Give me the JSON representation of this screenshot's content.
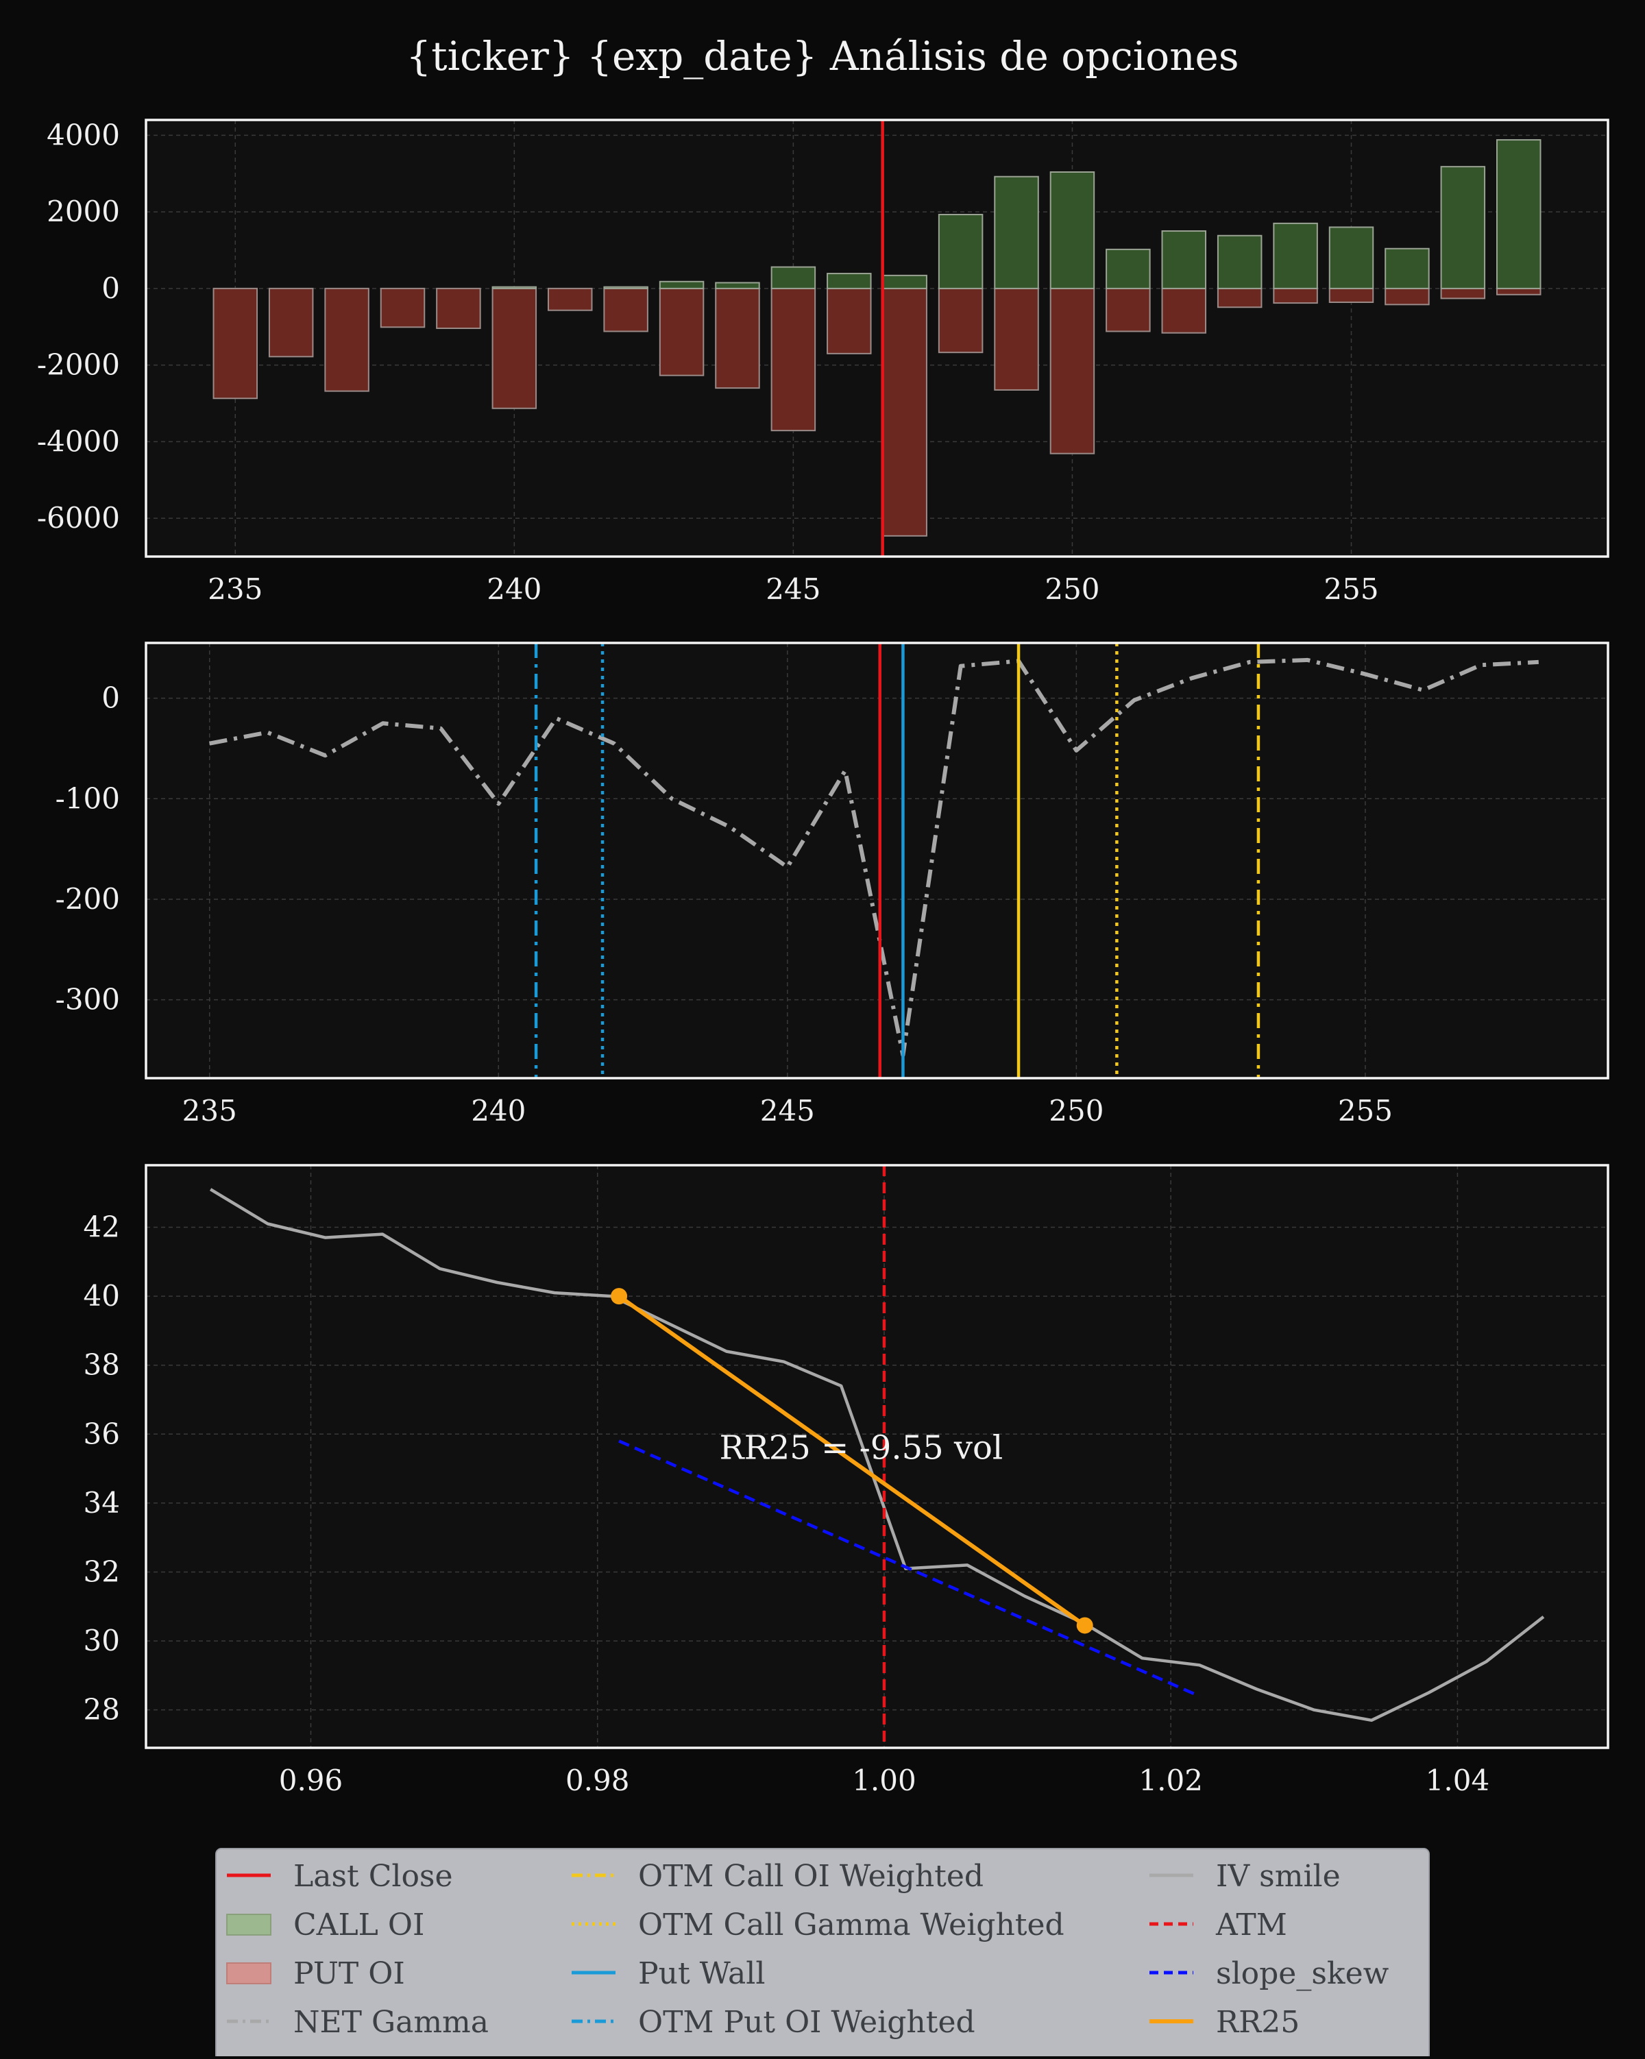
{
  "figure_title": "{ticker} {exp_date} Análisis de opciones",
  "colors": {
    "background": "#0a0a0a",
    "panel": "#101010",
    "call_oi": "#34552a",
    "put_oi": "#6b2820",
    "last_close": "#e8161a",
    "net_gamma": "#a8a8a8",
    "call_levels": "#f2c81d",
    "put_levels": "#1a9bd8",
    "iv_smile": "#a9a9a9",
    "atm": "#e8161a",
    "slope_skew": "#0a10ff",
    "rr25": "#f8a00f"
  },
  "chart_data": [
    {
      "type": "bar",
      "panel": "open_interest",
      "xlim": [
        233.4,
        259.6
      ],
      "ylim": [
        -7000,
        4400
      ],
      "x_ticks": [
        "235",
        "240",
        "245",
        "250",
        "255"
      ],
      "y_ticks": [
        "4000",
        "2000",
        "0",
        "-2000",
        "-4000",
        "-6000"
      ],
      "strikes": [
        235,
        236,
        237,
        238,
        239,
        240,
        241,
        242,
        243,
        244,
        245,
        246,
        247,
        248,
        249,
        250,
        251,
        252,
        253,
        254,
        255,
        256,
        257,
        258
      ],
      "series": [
        {
          "name": "CALL OI",
          "values": [
            0,
            0,
            0,
            0,
            0,
            40,
            0,
            40,
            180,
            150,
            560,
            390,
            340,
            1930,
            2920,
            3040,
            1020,
            1500,
            1380,
            1700,
            1600,
            1040,
            3180,
            3880
          ]
        },
        {
          "name": "PUT OI",
          "values": [
            -2870,
            -1780,
            -2680,
            -1010,
            -1040,
            -3130,
            -570,
            -1120,
            -2270,
            -2600,
            -3710,
            -1700,
            -6460,
            -1670,
            -2650,
            -4310,
            -1120,
            -1160,
            -490,
            -380,
            -360,
            -420,
            -260,
            -160
          ]
        }
      ],
      "last_close": 246.6
    },
    {
      "type": "line",
      "panel": "net_gamma",
      "xlim": [
        233.9,
        259.2
      ],
      "ylim": [
        -378,
        55
      ],
      "x_ticks": [
        "235",
        "240",
        "245",
        "250",
        "255"
      ],
      "y_ticks": [
        "0",
        "-100",
        "-200",
        "-300"
      ],
      "series": [
        {
          "name": "NET Gamma",
          "x": [
            235,
            236,
            237,
            238,
            239,
            240,
            241,
            242,
            243,
            244,
            245,
            246,
            247,
            248,
            249,
            250,
            251,
            252,
            253,
            254,
            255,
            256,
            257,
            258
          ],
          "values": [
            -45,
            -34,
            -57,
            -25,
            -30,
            -105,
            -20,
            -45,
            -100,
            -128,
            -168,
            -72,
            -355,
            32,
            37,
            -52,
            -2,
            20,
            36,
            38,
            24,
            8,
            33,
            36
          ]
        }
      ],
      "last_close": 246.6,
      "put_wall": 247.0,
      "otm_put_oi_weighted": 240.65,
      "otm_put_gamma_weighted": 241.8,
      "call_wall": 249.0,
      "otm_call_gamma_weighted": 250.7,
      "otm_call_oi_weighted": 253.15
    },
    {
      "type": "line",
      "panel": "iv_smile",
      "xlim": [
        0.9485,
        1.0505
      ],
      "ylim": [
        26.9,
        43.8
      ],
      "x_ticks": [
        "0.96",
        "0.98",
        "1.00",
        "1.02",
        "1.04"
      ],
      "y_ticks": [
        "42",
        "40",
        "38",
        "36",
        "34",
        "32",
        "30",
        "28"
      ],
      "series": [
        {
          "name": "IV smile",
          "x": [
            0.953,
            0.957,
            0.961,
            0.965,
            0.969,
            0.973,
            0.977,
            0.981,
            0.985,
            0.989,
            0.993,
            0.997,
            1.0015,
            1.0058,
            1.0098,
            1.014,
            1.018,
            1.022,
            1.026,
            1.03,
            1.034,
            1.038,
            1.042,
            1.046
          ],
          "values": [
            43.1,
            42.1,
            41.7,
            41.8,
            40.8,
            40.4,
            40.1,
            40.0,
            39.2,
            38.4,
            38.1,
            37.4,
            32.1,
            32.2,
            31.3,
            30.5,
            29.5,
            29.3,
            28.6,
            28.0,
            27.7,
            28.5,
            29.4,
            30.7
          ]
        },
        {
          "name": "slope_skew",
          "x": [
            0.9815,
            1.022
          ],
          "values": [
            35.8,
            28.4
          ]
        },
        {
          "name": "RR25",
          "x": [
            0.9815,
            1.014
          ],
          "values": [
            40.0,
            30.45
          ]
        }
      ],
      "atm": 1.0,
      "annotation": "RR25 = -9.55 vol"
    }
  ],
  "legend": {
    "placement": "bottom-center",
    "entries": [
      {
        "label": "Last Close",
        "style": "line"
      },
      {
        "label": "CALL OI",
        "style": "patch-call"
      },
      {
        "label": "PUT OI",
        "style": "patch-put"
      },
      {
        "label": "NET Gamma",
        "style": "dashdot-grey"
      },
      {
        "label": "OTM Call OI Weighted",
        "style": "dashdot-yellow"
      },
      {
        "label": "OTM Call Gamma Weighted",
        "style": "dotted-yellow"
      },
      {
        "label": "Put Wall",
        "style": "line-blue"
      },
      {
        "label": "OTM Put OI Weighted",
        "style": "dashdot-blue"
      },
      {
        "label": "IV smile",
        "style": "line-grey"
      },
      {
        "label": "ATM",
        "style": "dashed-red"
      },
      {
        "label": "slope_skew",
        "style": "dashed-navy"
      },
      {
        "label": "RR25",
        "style": "line-orange"
      }
    ]
  }
}
